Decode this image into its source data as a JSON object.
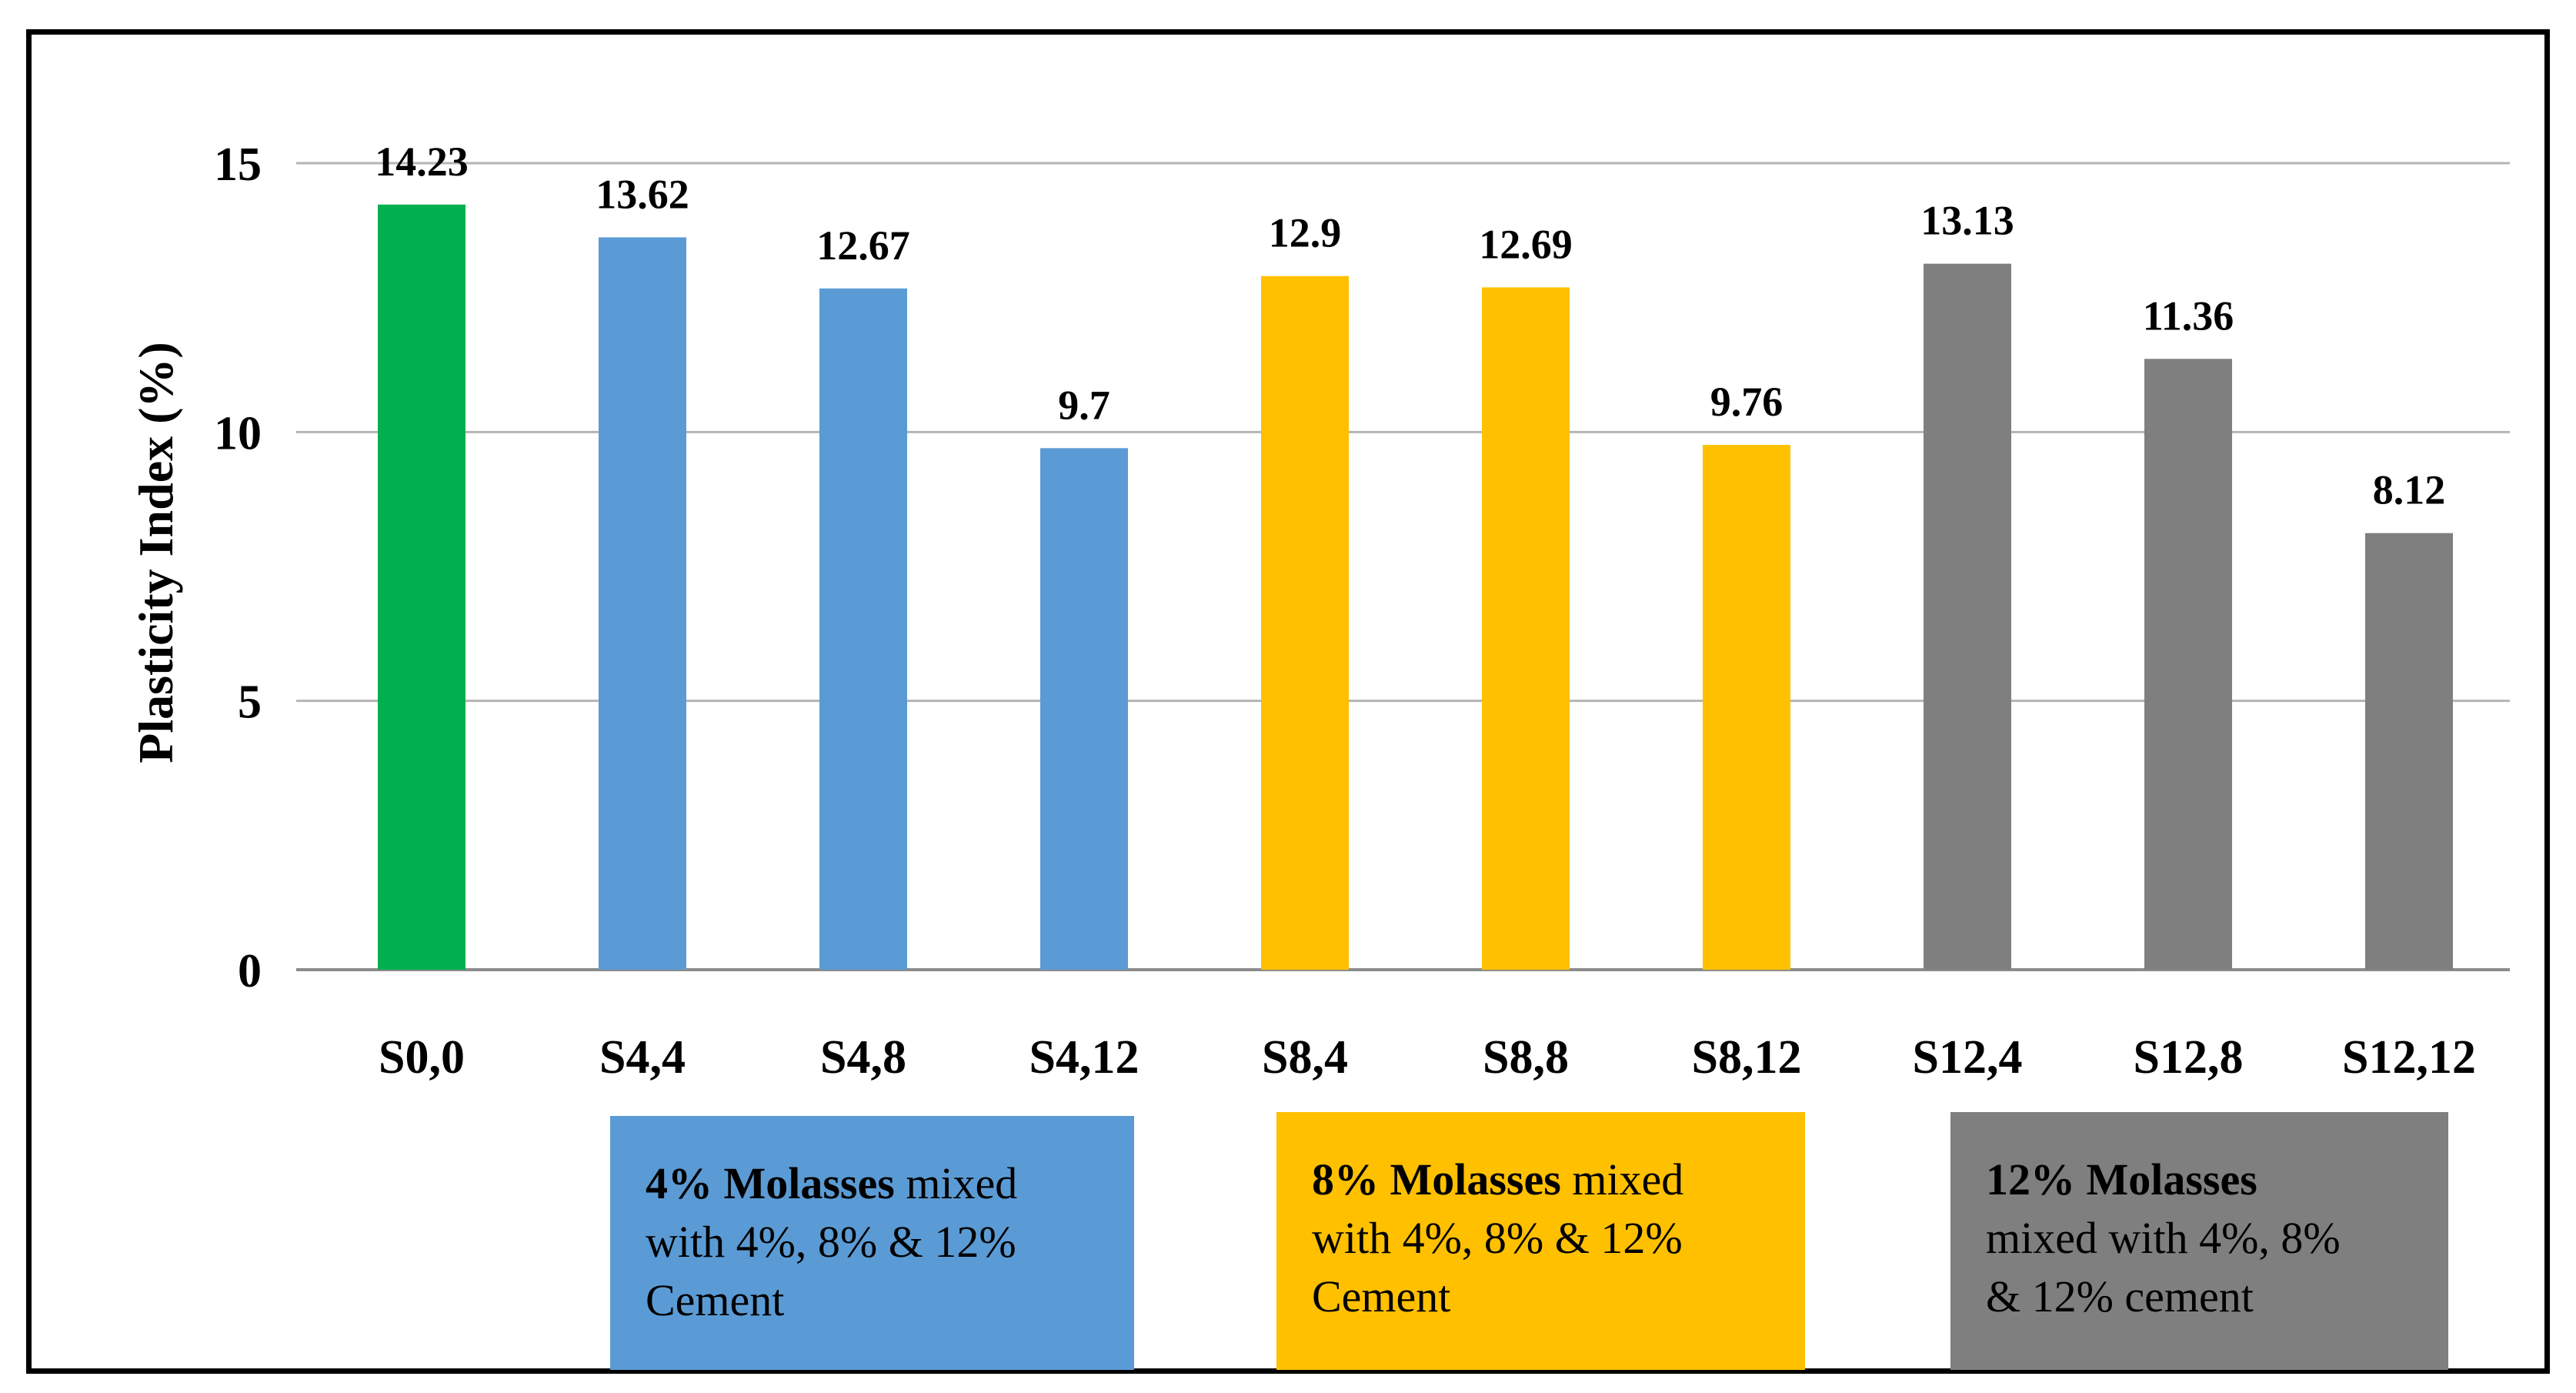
{
  "chart_data": {
    "type": "bar",
    "title": "",
    "xlabel": "",
    "ylabel": "Plasticity Index (%)",
    "ylim": [
      0,
      15
    ],
    "yticks": [
      0,
      5,
      10,
      15
    ],
    "grid": true,
    "categories": [
      "S0,0",
      "S4,4",
      "S4,8",
      "S4,12",
      "S8,4",
      "S8,8",
      "S8,12",
      "S12,4",
      "S12,8",
      "S12,12"
    ],
    "values": [
      14.23,
      13.62,
      12.67,
      9.7,
      12.9,
      12.69,
      9.76,
      13.13,
      11.36,
      8.12
    ],
    "value_labels": [
      "14.23",
      "13.62",
      "12.67",
      "9.7",
      "12.9",
      "12.69",
      "9.76",
      "13.13",
      "11.36",
      "8.12"
    ],
    "bar_colors": [
      "#00b050",
      "#5b9bd5",
      "#5b9bd5",
      "#5b9bd5",
      "#ffc000",
      "#ffc000",
      "#ffc000",
      "#7f7f7f",
      "#7f7f7f",
      "#7f7f7f"
    ]
  },
  "legend": [
    {
      "bold": "4% Molasses",
      "line1_rest": " mixed",
      "line2": "with 4%, 8% & 12%",
      "line3": "Cement",
      "color": "#5b9bd5"
    },
    {
      "bold": "8% Molasses",
      "line1_rest": " mixed",
      "line2": "with 4%, 8% & 12%",
      "line3": "Cement",
      "color": "#ffc000"
    },
    {
      "bold": "12% Molasses",
      "line1_rest": "",
      "line2": "mixed with 4%, 8%",
      "line3": "& 12% cement",
      "color": "#7f7f7f"
    }
  ]
}
